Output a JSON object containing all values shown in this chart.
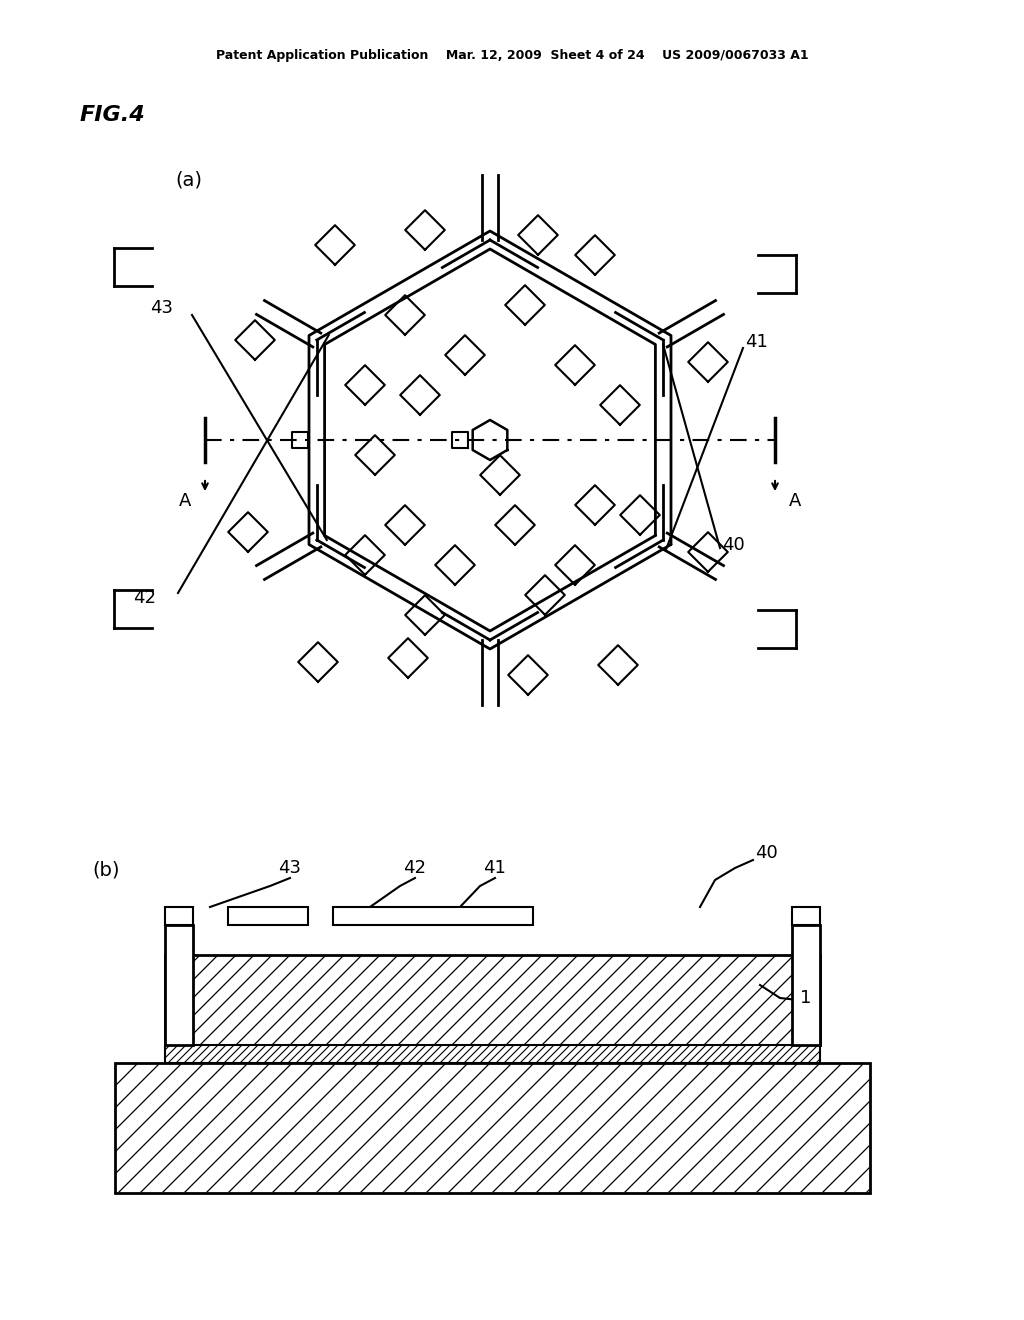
{
  "bg_color": "#ffffff",
  "line_color": "#000000",
  "header_text": "Patent Application Publication    Mar. 12, 2009  Sheet 4 of 24    US 2009/0067033 A1",
  "fig_label": "FIG.4",
  "sub_a_label": "(a)",
  "sub_b_label": "(b)"
}
